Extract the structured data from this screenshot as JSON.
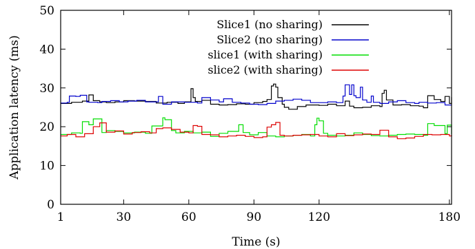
{
  "chart_data": {
    "type": "line",
    "title": "",
    "xlabel": "Time (s)",
    "ylabel": "Application latency (ms)",
    "xlim": [
      1,
      181
    ],
    "ylim": [
      0,
      50
    ],
    "xticks": [
      1,
      30,
      60,
      90,
      120,
      180
    ],
    "yticks": [
      0,
      10,
      20,
      30,
      40,
      50
    ],
    "grid": false,
    "legend_position": "top-right",
    "series": [
      {
        "name": "Slice1 (no sharing)",
        "color": "#000000",
        "x": [
          1,
          6,
          11,
          14,
          16,
          19,
          22,
          26,
          30,
          35,
          40,
          45,
          50,
          55,
          58,
          61,
          62,
          63,
          66,
          70,
          74,
          78,
          82,
          86,
          90,
          94,
          96,
          98,
          99,
          100,
          101,
          103,
          104,
          106,
          110,
          114,
          120,
          124,
          128,
          132,
          134,
          136,
          140,
          144,
          148,
          149,
          150,
          151,
          154,
          158,
          162,
          166,
          168,
          170,
          173,
          176,
          178,
          180,
          181
        ],
        "y": [
          26,
          26.3,
          26.6,
          28.2,
          26.7,
          26.4,
          26.2,
          26.4,
          26.7,
          26.6,
          26.5,
          26.1,
          26.3,
          26.0,
          26.4,
          29.8,
          27.5,
          26.5,
          26.8,
          25.8,
          25.6,
          25.7,
          25.9,
          25.8,
          26.2,
          26.5,
          27,
          30.5,
          31.0,
          30.2,
          27.5,
          25.8,
          25.0,
          24.5,
          25.2,
          25.6,
          25.5,
          25.8,
          25.4,
          26.6,
          25.3,
          24.9,
          25.0,
          25.4,
          25.2,
          28.6,
          29.4,
          26.9,
          25.6,
          25.7,
          25.4,
          25.3,
          24.9,
          28.0,
          27.0,
          26.5,
          27.8,
          26.0,
          27.6
        ]
      },
      {
        "name": "Slice2 (no sharing)",
        "color": "#0000cc",
        "x": [
          1,
          4,
          5,
          8,
          10,
          13,
          14,
          18,
          20,
          24,
          28,
          32,
          36,
          40,
          46,
          48,
          52,
          58,
          64,
          66,
          70,
          74,
          76,
          80,
          84,
          88,
          92,
          96,
          100,
          104,
          108,
          112,
          116,
          120,
          124,
          128,
          131,
          132,
          134,
          135,
          136,
          137,
          139,
          140,
          142,
          144,
          145,
          148,
          152,
          156,
          160,
          164,
          166,
          170,
          174,
          178,
          181
        ],
        "y": [
          26.1,
          26.3,
          27.9,
          27.8,
          28.1,
          26.4,
          26.3,
          26.2,
          26.5,
          26.7,
          26.4,
          26.6,
          26.8,
          26.4,
          27.8,
          25.8,
          26.4,
          26.3,
          26.1,
          27.5,
          26.9,
          26.4,
          27.2,
          26.3,
          26.1,
          25.8,
          25.7,
          26.0,
          26.6,
          26.8,
          27.1,
          26.8,
          26.2,
          26.2,
          26.4,
          26.2,
          27.9,
          30.8,
          28.3,
          30.8,
          28.0,
          27.5,
          30.2,
          26.9,
          26.3,
          27.9,
          26.3,
          26.0,
          26.4,
          26.7,
          26.2,
          26.0,
          26.3,
          26.1,
          26.2,
          25.6,
          25.5
        ]
      },
      {
        "name": "slice1 (with sharing)",
        "color": "#00dd00",
        "x": [
          1,
          6,
          10,
          11,
          14,
          16,
          20,
          22,
          26,
          30,
          35,
          40,
          43,
          48,
          49,
          52,
          54,
          58,
          62,
          66,
          70,
          74,
          78,
          83,
          85,
          88,
          92,
          96,
          100,
          104,
          108,
          112,
          116,
          118,
          119,
          120,
          122,
          124,
          128,
          132,
          136,
          140,
          144,
          148,
          152,
          156,
          160,
          164,
          168,
          170,
          173,
          178,
          179,
          181
        ],
        "y": [
          18.0,
          18.4,
          18.3,
          21.3,
          20.5,
          22.0,
          18.5,
          19.0,
          18.8,
          18.4,
          18.6,
          18.3,
          20.2,
          22.3,
          21.8,
          19.0,
          18.4,
          18.8,
          18.4,
          18.6,
          17.5,
          18.3,
          18.8,
          20.5,
          18.5,
          17.9,
          18.5,
          17.6,
          17.4,
          17.6,
          17.8,
          18.0,
          17.6,
          20.5,
          22.2,
          21.5,
          18.3,
          17.8,
          17.6,
          17.8,
          18.4,
          18.0,
          17.7,
          17.6,
          17.8,
          18.0,
          18.1,
          18.0,
          17.8,
          20.8,
          20.3,
          18.2,
          20.4,
          18.1
        ]
      },
      {
        "name": "slice2 (with sharing)",
        "color": "#dd0000",
        "x": [
          1,
          4,
          8,
          12,
          16,
          19,
          22,
          26,
          30,
          34,
          38,
          42,
          45,
          48,
          52,
          56,
          60,
          62,
          64,
          66,
          70,
          74,
          78,
          82,
          86,
          90,
          94,
          96,
          98,
          100,
          102,
          104,
          108,
          112,
          116,
          120,
          124,
          128,
          132,
          136,
          140,
          144,
          148,
          152,
          156,
          160,
          164,
          168,
          172,
          176,
          180,
          181
        ],
        "y": [
          17.6,
          18.0,
          17.4,
          18.2,
          20.0,
          21.0,
          18.6,
          18.9,
          18.1,
          18.5,
          18.7,
          18.4,
          19.5,
          19.7,
          19.3,
          18.6,
          18.4,
          20.3,
          20.1,
          18.0,
          17.9,
          17.4,
          17.6,
          17.8,
          17.5,
          17.2,
          17.4,
          19.9,
          20.5,
          21.1,
          17.8,
          17.6,
          17.8,
          17.9,
          18.0,
          17.6,
          17.4,
          18.2,
          17.7,
          17.9,
          18.1,
          18.0,
          19.1,
          17.4,
          16.9,
          17.1,
          17.5,
          18.0,
          17.9,
          18.0,
          17.6,
          17.9
        ]
      }
    ]
  }
}
